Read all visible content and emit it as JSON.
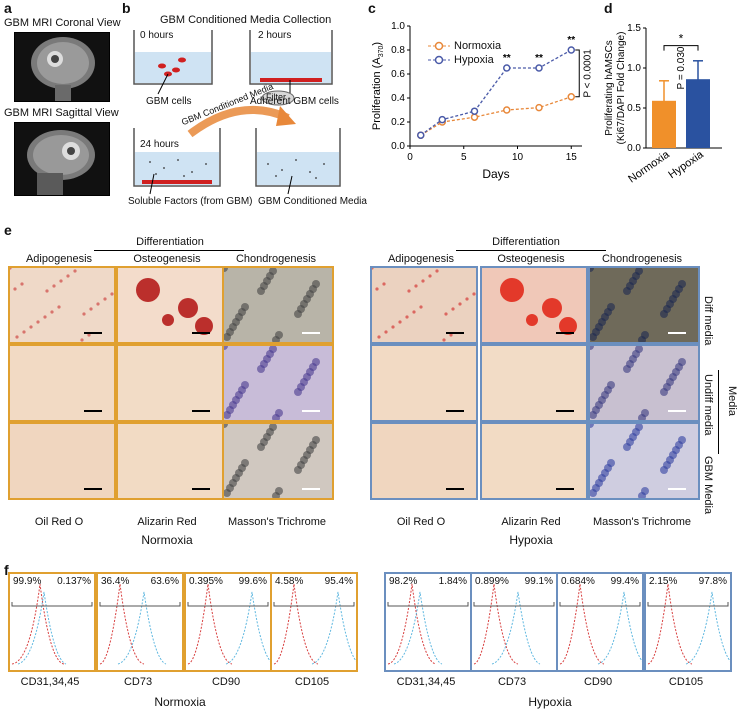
{
  "panel_a": {
    "label": "a",
    "coronal_title": "GBM MRI Coronal View",
    "sagittal_title": "GBM MRI Sagittal View"
  },
  "panel_b": {
    "label": "b",
    "title": "GBM Conditioned Media Collection",
    "t0": "0 hours",
    "t2": "2 hours",
    "t24": "24 hours",
    "gbm_cells": "GBM cells",
    "adherent": "Adherent GBM cells",
    "soluble": "Soluble Factors (from GBM)",
    "conditioned": "GBM Conditioned Media",
    "arrow_text": "GBM Conditioned Media",
    "filter": "Filter"
  },
  "panel_c": {
    "label": "c",
    "chart_data": {
      "type": "line",
      "xlabel": "Days",
      "ylabel": "Proliferation (A",
      "ylabel_sub": "370",
      "ylabel_end": ")",
      "xlim": [
        0,
        16
      ],
      "ylim": [
        0.0,
        1.0
      ],
      "xticks": [
        "0",
        "5",
        "10",
        "15"
      ],
      "yticks": [
        "0.0",
        "0.2",
        "0.4",
        "0.6",
        "0.8",
        "1.0"
      ],
      "x": [
        1,
        3,
        6,
        9,
        12,
        15
      ],
      "series": [
        {
          "name": "Normoxia",
          "color": "#e8883a",
          "values": [
            0.09,
            0.2,
            0.24,
            0.3,
            0.32,
            0.41
          ]
        },
        {
          "name": "Hypoxia",
          "color": "#4a5aa8",
          "values": [
            0.09,
            0.22,
            0.29,
            0.65,
            0.65,
            0.8
          ]
        }
      ],
      "sig_marks": [
        "**",
        "**",
        "**"
      ],
      "pvalue": "P < 0.0001"
    }
  },
  "panel_d": {
    "label": "d",
    "chart_data": {
      "type": "bar",
      "categories": [
        "Normoxia",
        "Hypoxia"
      ],
      "values": [
        0.59,
        0.86
      ],
      "errors": [
        0.25,
        0.23
      ],
      "colors": [
        "#f0902a",
        "#2a52a0"
      ],
      "ylabel_line1": "Proliferating hAMSCs",
      "ylabel_line2": "(Ki67/DAPI Fold Change)",
      "ylim": [
        0.0,
        1.5
      ],
      "yticks": [
        "0.0",
        "0.5",
        "1.0",
        "1.5"
      ],
      "sig": "*",
      "pvalue": "P = 0.030"
    }
  },
  "panel_e": {
    "label": "e",
    "differentiation": "Differentiation",
    "columns": [
      "Adipogenesis",
      "Osteogenesis",
      "Chondrogenesis"
    ],
    "stains": [
      "Oil Red O",
      "Alizarin Red",
      "Masson's Trichrome"
    ],
    "normoxia": "Normoxia",
    "hypoxia": "Hypoxia",
    "rows": [
      "Diff media",
      "Undiff media",
      "GBM Media"
    ],
    "media": "Media"
  },
  "panel_f": {
    "label": "f",
    "normoxia": "Normoxia",
    "hypoxia": "Hypoxia",
    "markers": [
      "CD31,34,45",
      "CD73",
      "CD90",
      "CD105"
    ],
    "normoxia_pcts": [
      [
        "99.9%",
        "0.137%"
      ],
      [
        "36.4%",
        "63.6%"
      ],
      [
        "0.395%",
        "99.6%"
      ],
      [
        "4.58%",
        "95.4%"
      ]
    ],
    "hypoxia_pcts": [
      [
        "98.2%",
        "1.84%"
      ],
      [
        "0.899%",
        "99.1%"
      ],
      [
        "0.684%",
        "99.4%"
      ],
      [
        "2.15%",
        "97.8%"
      ]
    ]
  }
}
